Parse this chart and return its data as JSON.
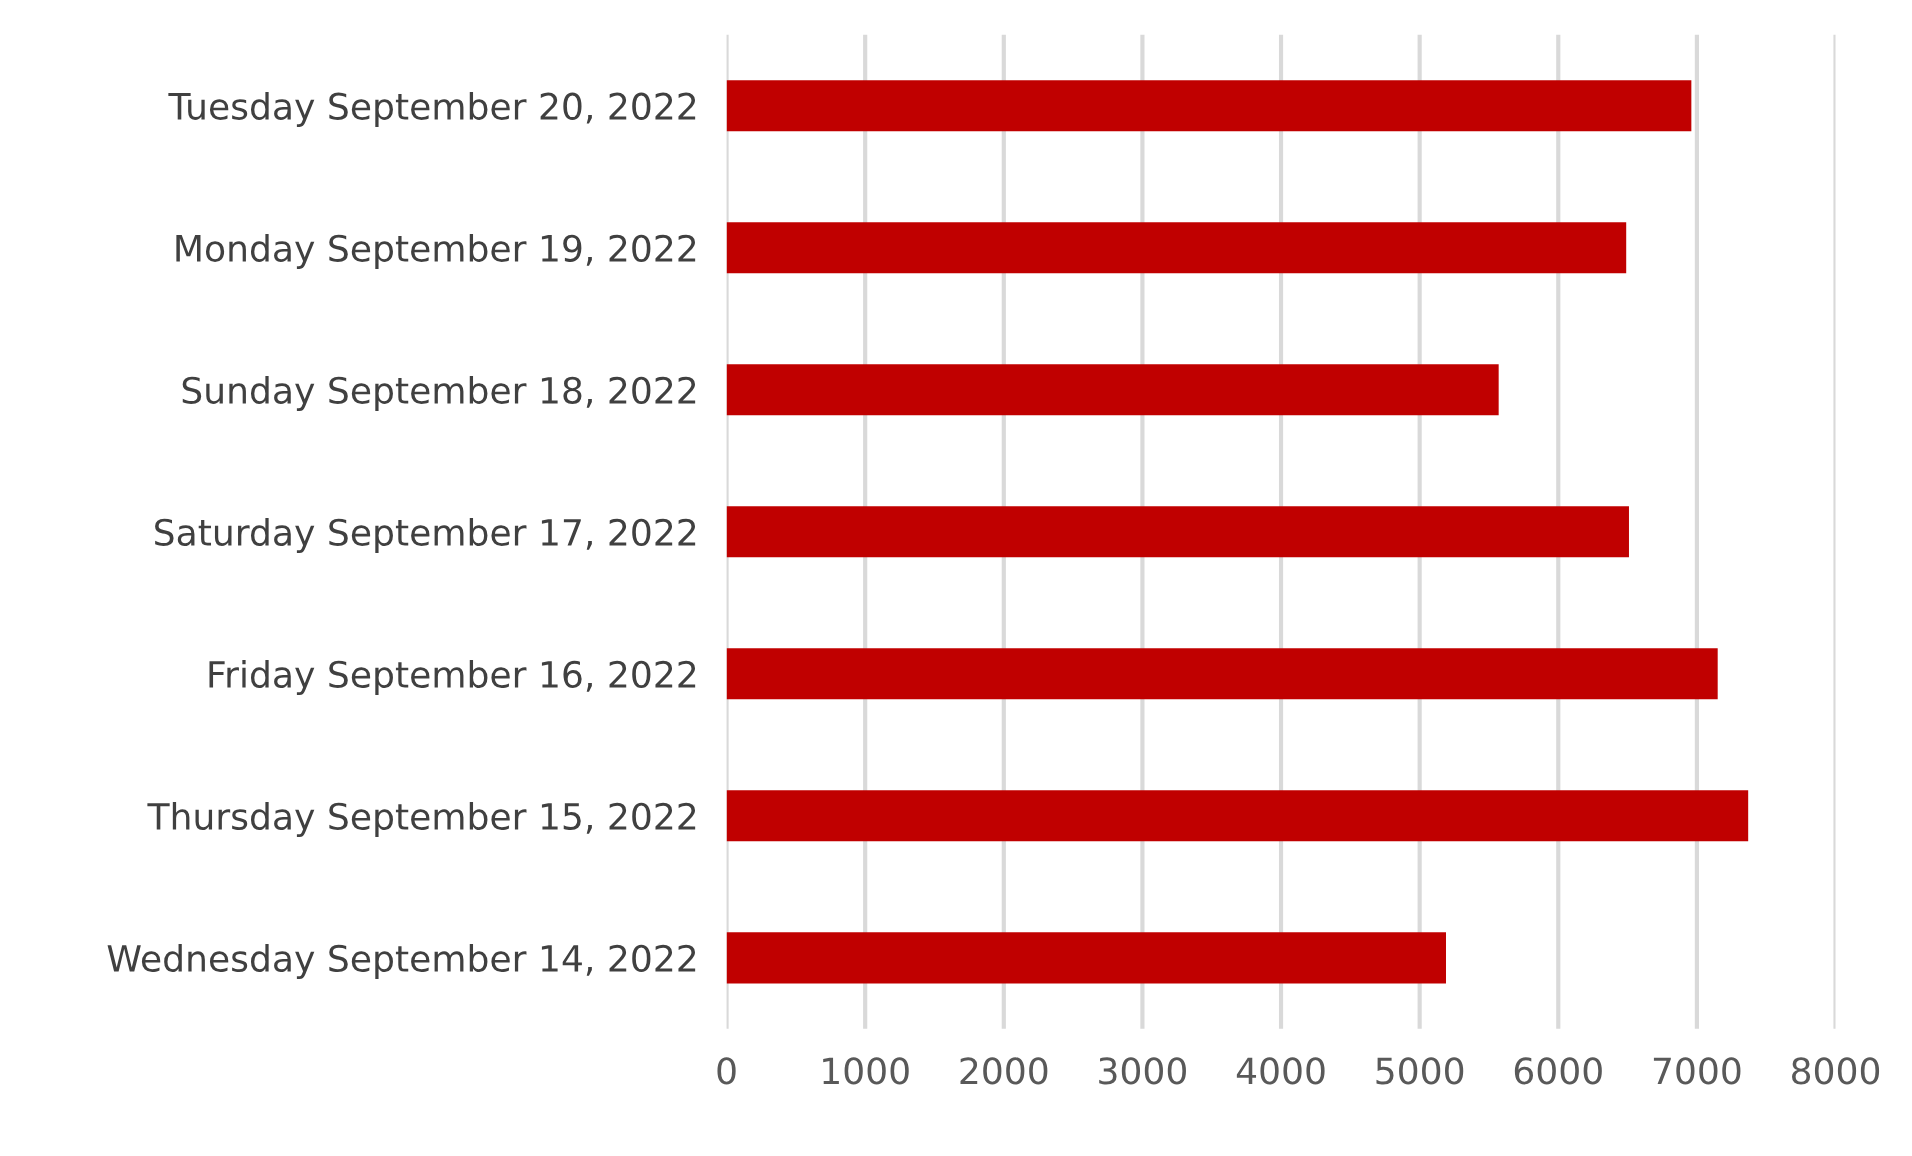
{
  "chart_data": {
    "type": "bar",
    "orientation": "horizontal",
    "categories": [
      "Tuesday September 20, 2022",
      "Monday September 19, 2022",
      "Sunday September 18, 2022",
      "Saturday September 17, 2022",
      "Friday September 16, 2022",
      "Thursday September 15, 2022",
      "Wednesday September 14, 2022"
    ],
    "values": [
      6960,
      6490,
      5570,
      6510,
      7150,
      7370,
      5190
    ],
    "color": "#c00000",
    "xlim": [
      0,
      8000
    ],
    "xticks": [
      0,
      1000,
      2000,
      3000,
      4000,
      5000,
      6000,
      7000,
      8000
    ],
    "grid": "x",
    "legend": false
  }
}
